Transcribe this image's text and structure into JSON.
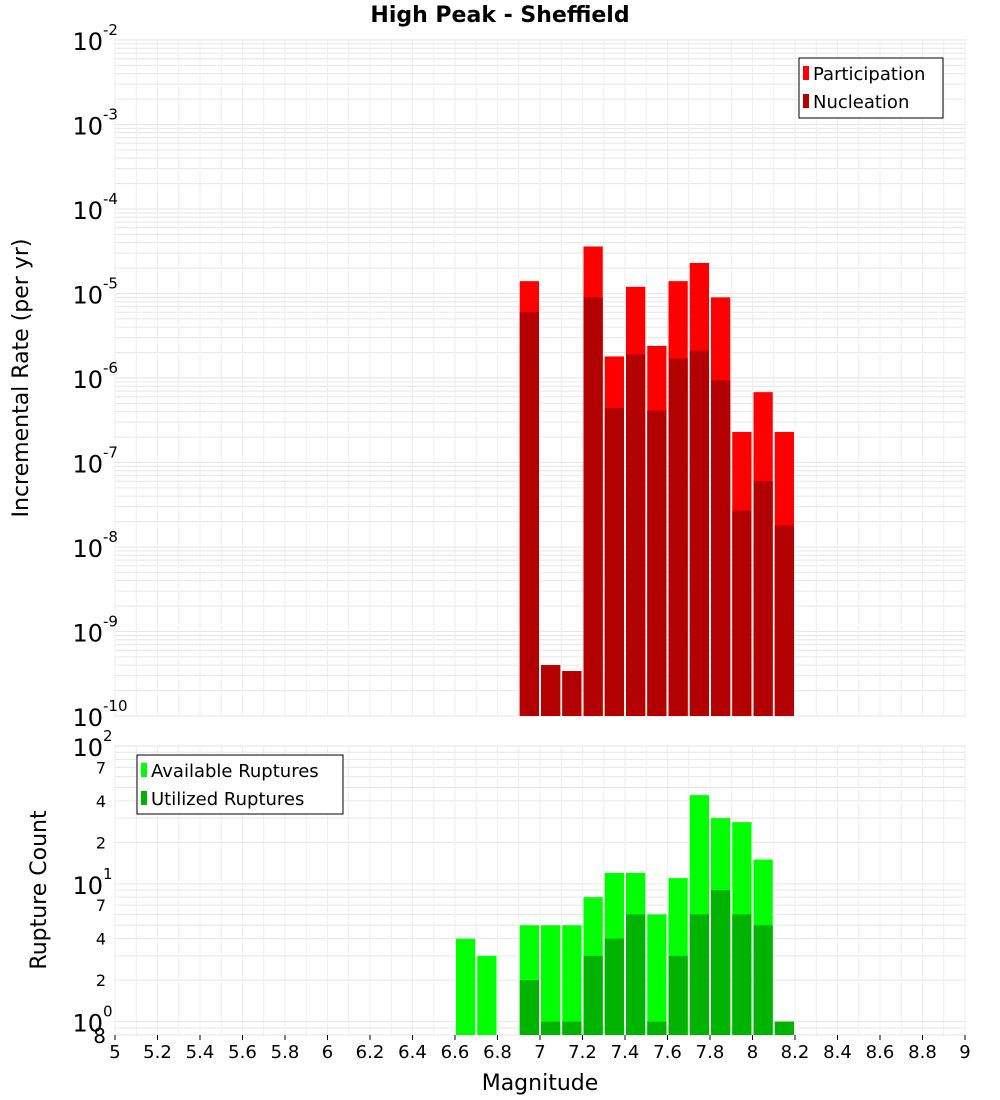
{
  "chart_data": [
    {
      "type": "bar",
      "title": "High Peak - Sheffield",
      "xlabel": "",
      "ylabel": "Incremental Rate (per yr)",
      "yscale": "log",
      "xlim": [
        5,
        9
      ],
      "ylim": [
        1e-10,
        0.01
      ],
      "y_tick_bases": [
        "10",
        "10",
        "10",
        "10",
        "10",
        "10",
        "10",
        "10",
        "10"
      ],
      "y_tick_exponents": [
        "-2",
        "-3",
        "-4",
        "-5",
        "-6",
        "-7",
        "-8",
        "-9",
        "-10"
      ],
      "legend": {
        "position": "top-right",
        "entries": [
          "Participation",
          "Nucleation"
        ]
      },
      "grid": true,
      "colors": {
        "Participation": "#ff0000",
        "Nucleation": "#b30000"
      },
      "bin_width": 0.1,
      "x": [
        6.95,
        7.05,
        7.15,
        7.25,
        7.35,
        7.45,
        7.55,
        7.65,
        7.75,
        7.85,
        7.95,
        8.05,
        8.15
      ],
      "series": [
        {
          "name": "Participation",
          "values": [
            1.4e-05,
            4e-10,
            3.4e-10,
            3.6e-05,
            1.8e-06,
            1.2e-05,
            2.4e-06,
            1.4e-05,
            2.3e-05,
            9e-06,
            2.3e-07,
            6.8e-07,
            2.3e-07
          ]
        },
        {
          "name": "Nucleation",
          "values": [
            6e-06,
            4e-10,
            3.4e-10,
            9e-06,
            4.4e-07,
            1.9e-06,
            4.1e-07,
            1.7e-06,
            2.1e-06,
            9.4e-07,
            2.7e-08,
            6e-08,
            1.8e-08
          ]
        }
      ]
    },
    {
      "type": "bar",
      "title": "",
      "xlabel": "Magnitude",
      "ylabel": "Rupture Count",
      "yscale": "log",
      "xlim": [
        5,
        9
      ],
      "ylim": [
        0.8,
        100
      ],
      "x_ticks": [
        "5",
        "5.2",
        "5.4",
        "5.6",
        "5.8",
        "6",
        "6.2",
        "6.4",
        "6.6",
        "6.8",
        "7",
        "7.2",
        "7.4",
        "7.6",
        "7.8",
        "8",
        "8.2",
        "8.4",
        "8.6",
        "8.8",
        "9"
      ],
      "y_tick_bases": [
        "10",
        "10",
        "10"
      ],
      "y_tick_exponents": [
        "2",
        "1",
        "0"
      ],
      "y_minor_tick_labels": [
        "7",
        "4",
        "2",
        "7",
        "4",
        "2",
        "8"
      ],
      "legend": {
        "position": "top-left",
        "entries": [
          "Available Ruptures",
          "Utilized Ruptures"
        ]
      },
      "grid": true,
      "colors": {
        "Available Ruptures": "#00ff00",
        "Utilized Ruptures": "#00b300"
      },
      "bin_width": 0.1,
      "x": [
        6.65,
        6.75,
        6.95,
        7.05,
        7.15,
        7.25,
        7.35,
        7.45,
        7.55,
        7.65,
        7.75,
        7.85,
        7.95,
        8.05,
        8.15
      ],
      "series": [
        {
          "name": "Available Ruptures",
          "values": [
            4,
            3,
            5,
            5,
            5,
            8,
            12,
            12,
            6,
            11,
            44,
            30,
            28,
            15,
            1
          ]
        },
        {
          "name": "Utilized Ruptures",
          "values": [
            0.8,
            0.8,
            2,
            1,
            1,
            3,
            4,
            6,
            1,
            3,
            6,
            9,
            6,
            5,
            1
          ]
        }
      ]
    }
  ]
}
